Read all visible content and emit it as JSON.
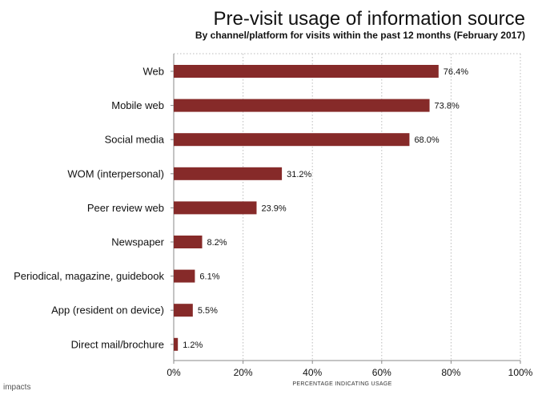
{
  "chart_data": {
    "type": "bar",
    "orientation": "horizontal",
    "title": "Pre-visit usage of information source",
    "subtitle": "By channel/platform for visits within the past 12 months (February 2017)",
    "xlabel": "PERCENTAGE INDICATING USAGE",
    "ylabel": "",
    "categories": [
      "Web",
      "Mobile web",
      "Social media",
      "WOM (interpersonal)",
      "Peer review web",
      "Newspaper",
      "Periodical, magazine, guidebook",
      "App (resident on device)",
      "Direct mail/brochure"
    ],
    "values": [
      76.4,
      73.8,
      68.0,
      31.2,
      23.9,
      8.2,
      6.1,
      5.5,
      1.2
    ],
    "data_labels": [
      "76.4%",
      "73.8%",
      "68.0%",
      "31.2%",
      "23.9%",
      "8.2%",
      "6.1%",
      "5.5%",
      "1.2%"
    ],
    "xlim": [
      0,
      100
    ],
    "xticks": [
      0,
      20,
      40,
      60,
      80,
      100
    ],
    "xtick_labels": [
      "0%",
      "20%",
      "40%",
      "60%",
      "80%",
      "100%"
    ],
    "grid": true,
    "bar_color": "#862a29",
    "grid_color": "#bbbbbb"
  },
  "footer": {
    "logo_text": "impacts"
  }
}
